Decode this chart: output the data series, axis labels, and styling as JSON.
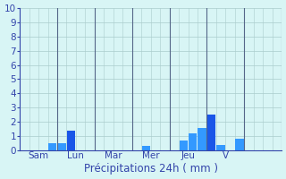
{
  "title": "",
  "xlabel": "Précipitations 24h ( mm )",
  "background_color": "#d8f5f5",
  "ylim": [
    0,
    10
  ],
  "yticks": [
    0,
    1,
    2,
    3,
    4,
    5,
    6,
    7,
    8,
    9,
    10
  ],
  "day_labels": [
    "Sam",
    "Lun",
    "Mar",
    "Mer",
    "Jeu",
    "V"
  ],
  "n_bars": 28,
  "bar_values": [
    0,
    0,
    0,
    0.5,
    0.5,
    1.4,
    0,
    0,
    0,
    0,
    0,
    0,
    0,
    0.3,
    0,
    0,
    0,
    0.7,
    1.2,
    1.6,
    2.5,
    0.4,
    0,
    0.8,
    0,
    0,
    0,
    0
  ],
  "bar_colors": [
    "#1a56e8",
    "#1a56e8",
    "#1a56e8",
    "#3399ff",
    "#3399ff",
    "#1a56e8",
    "#1a56e8",
    "#1a56e8",
    "#1a56e8",
    "#1a56e8",
    "#1a56e8",
    "#1a56e8",
    "#1a56e8",
    "#3399ff",
    "#1a56e8",
    "#1a56e8",
    "#1a56e8",
    "#3399ff",
    "#3399ff",
    "#3399ff",
    "#1a56e8",
    "#3399ff",
    "#1a56e8",
    "#3399ff",
    "#1a56e8",
    "#1a56e8",
    "#1a56e8",
    "#1a56e8"
  ],
  "n_days": 7,
  "bars_per_day": 4,
  "day_sep_color": "#556688",
  "grid_color": "#aacccc",
  "axis_color": "#3344aa",
  "tick_color": "#3344aa",
  "label_color": "#3344aa",
  "xlabel_fontsize": 8.5,
  "tick_fontsize": 7.5
}
